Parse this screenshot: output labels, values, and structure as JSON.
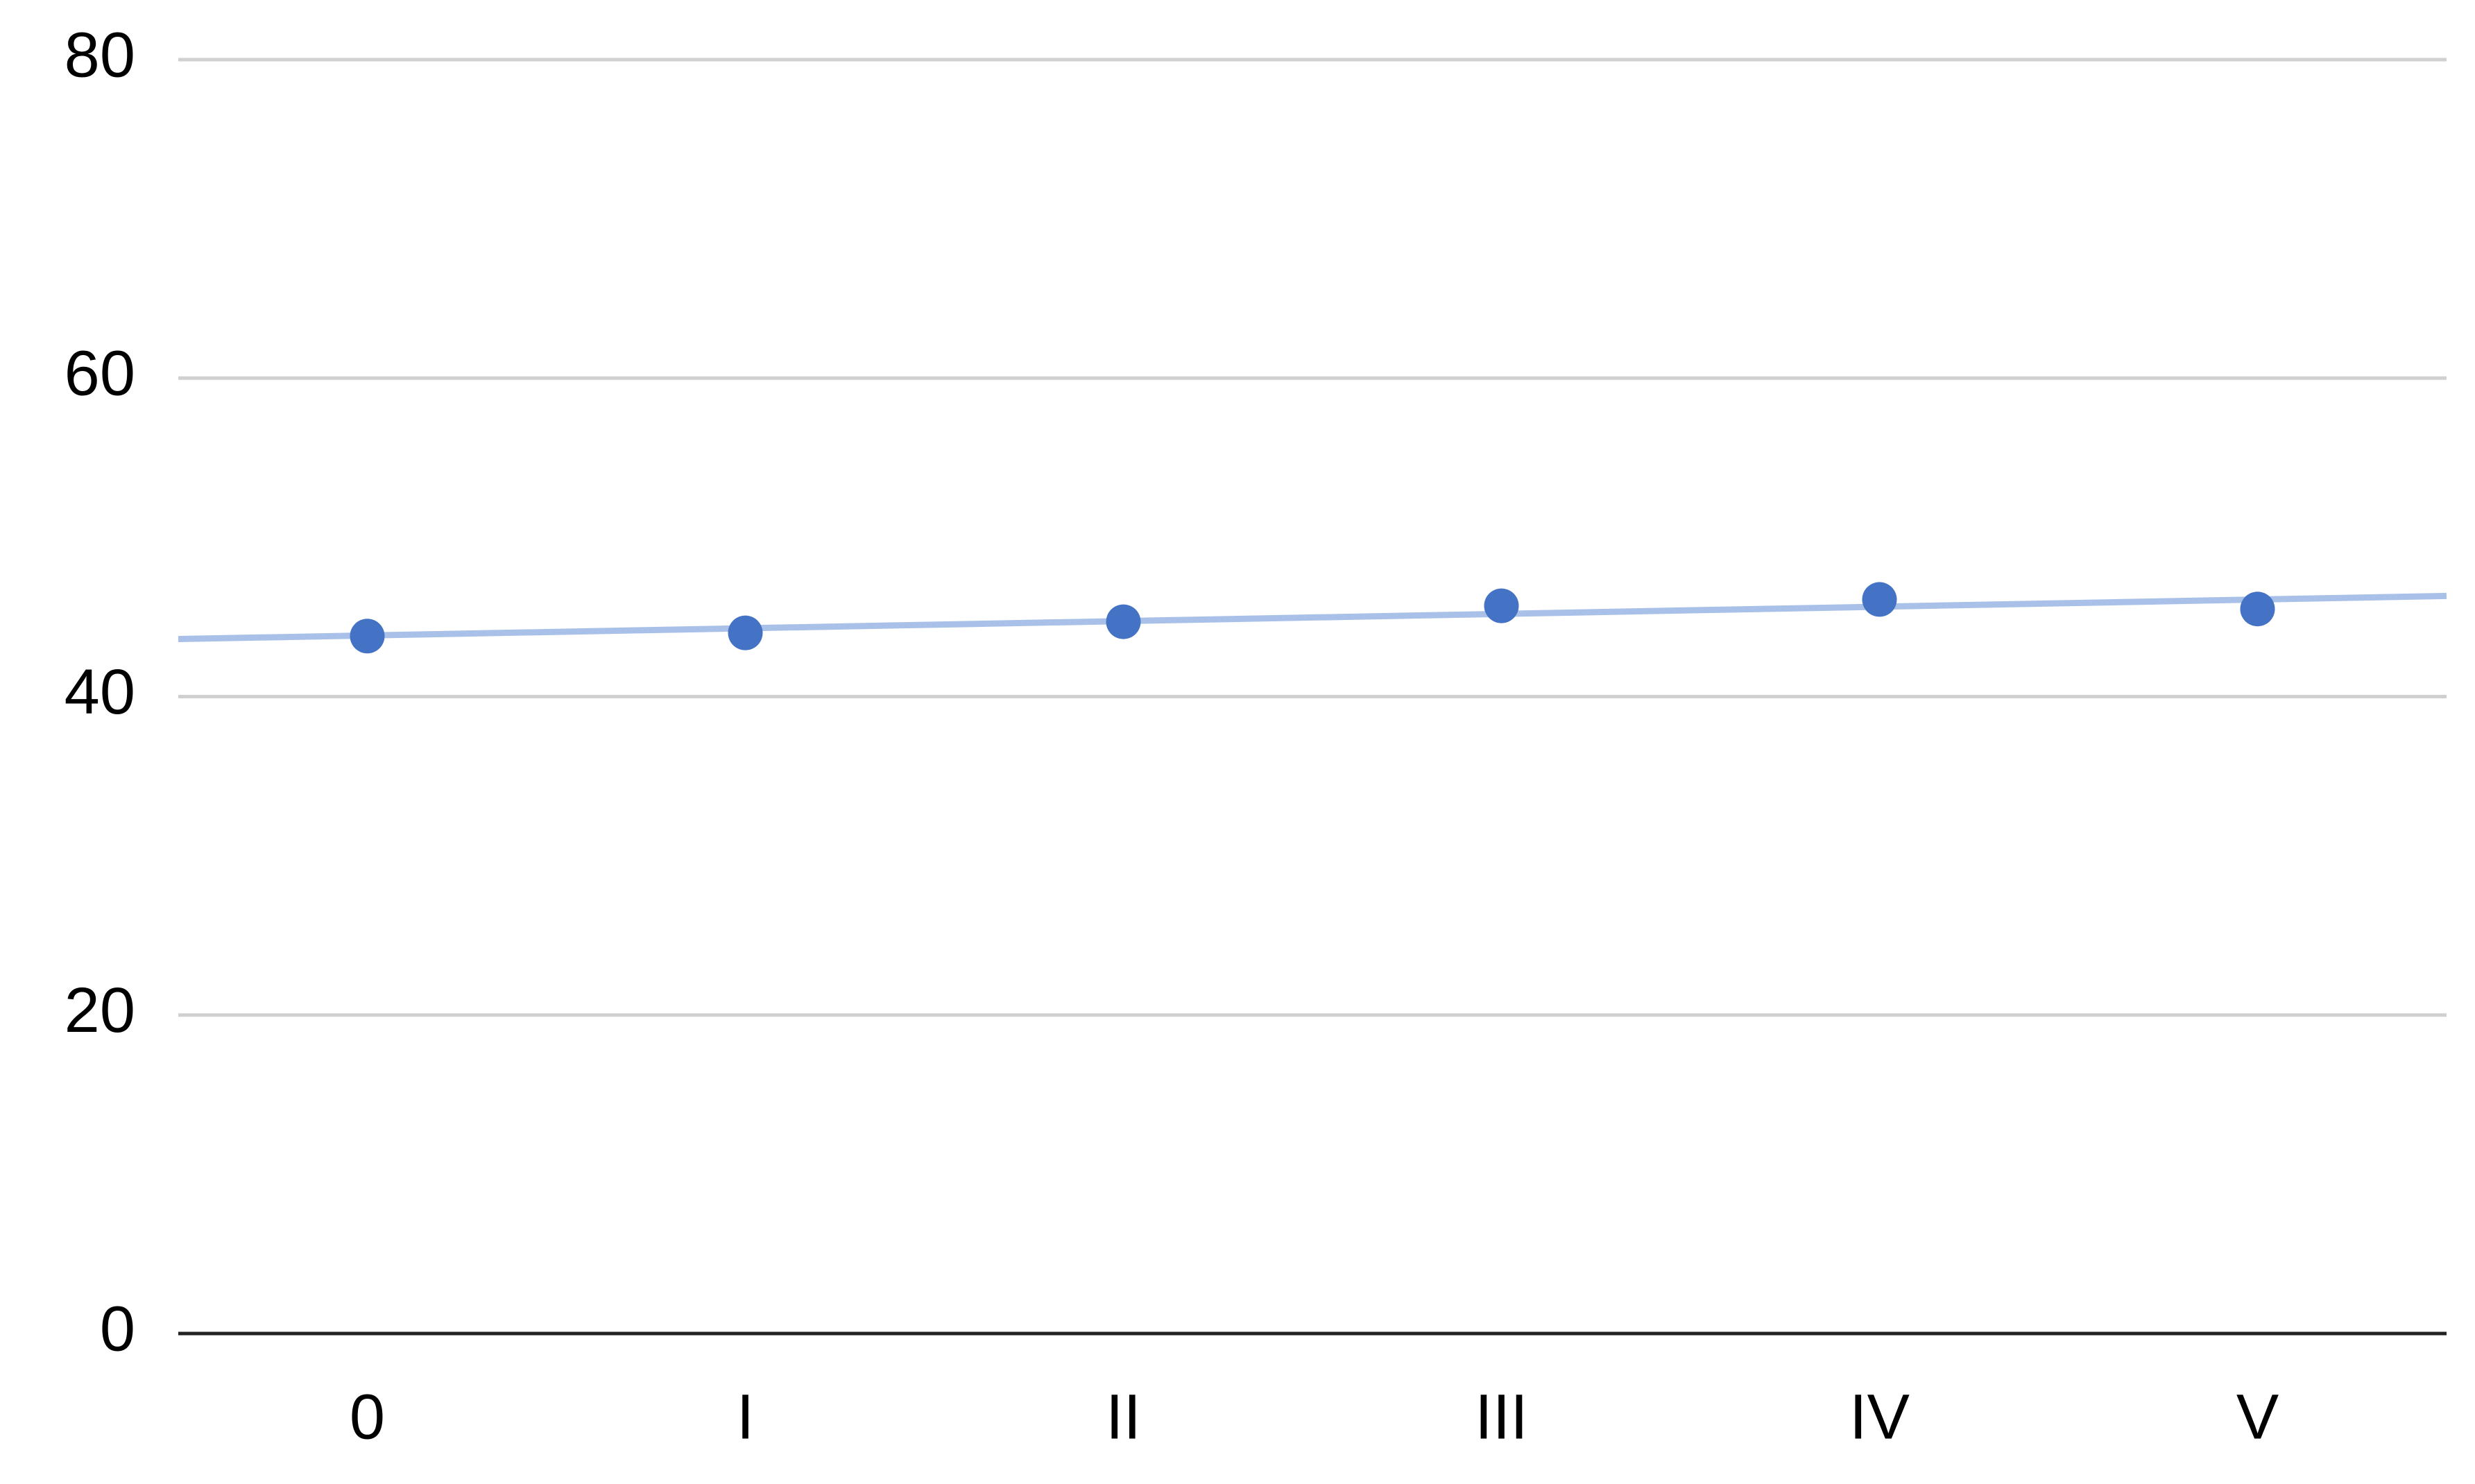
{
  "chart_data": {
    "type": "scatter",
    "categories": [
      "0",
      "I",
      "II",
      "III",
      "IV",
      "V"
    ],
    "values": [
      43.8,
      44.0,
      44.7,
      45.7,
      46.1,
      45.5
    ],
    "color": "#4472c4",
    "trendline": "linear",
    "trendline_color": "#a9c1e8",
    "ylim": [
      0,
      80
    ],
    "yticks": [
      0,
      20,
      40,
      60,
      80
    ],
    "grid": true
  }
}
